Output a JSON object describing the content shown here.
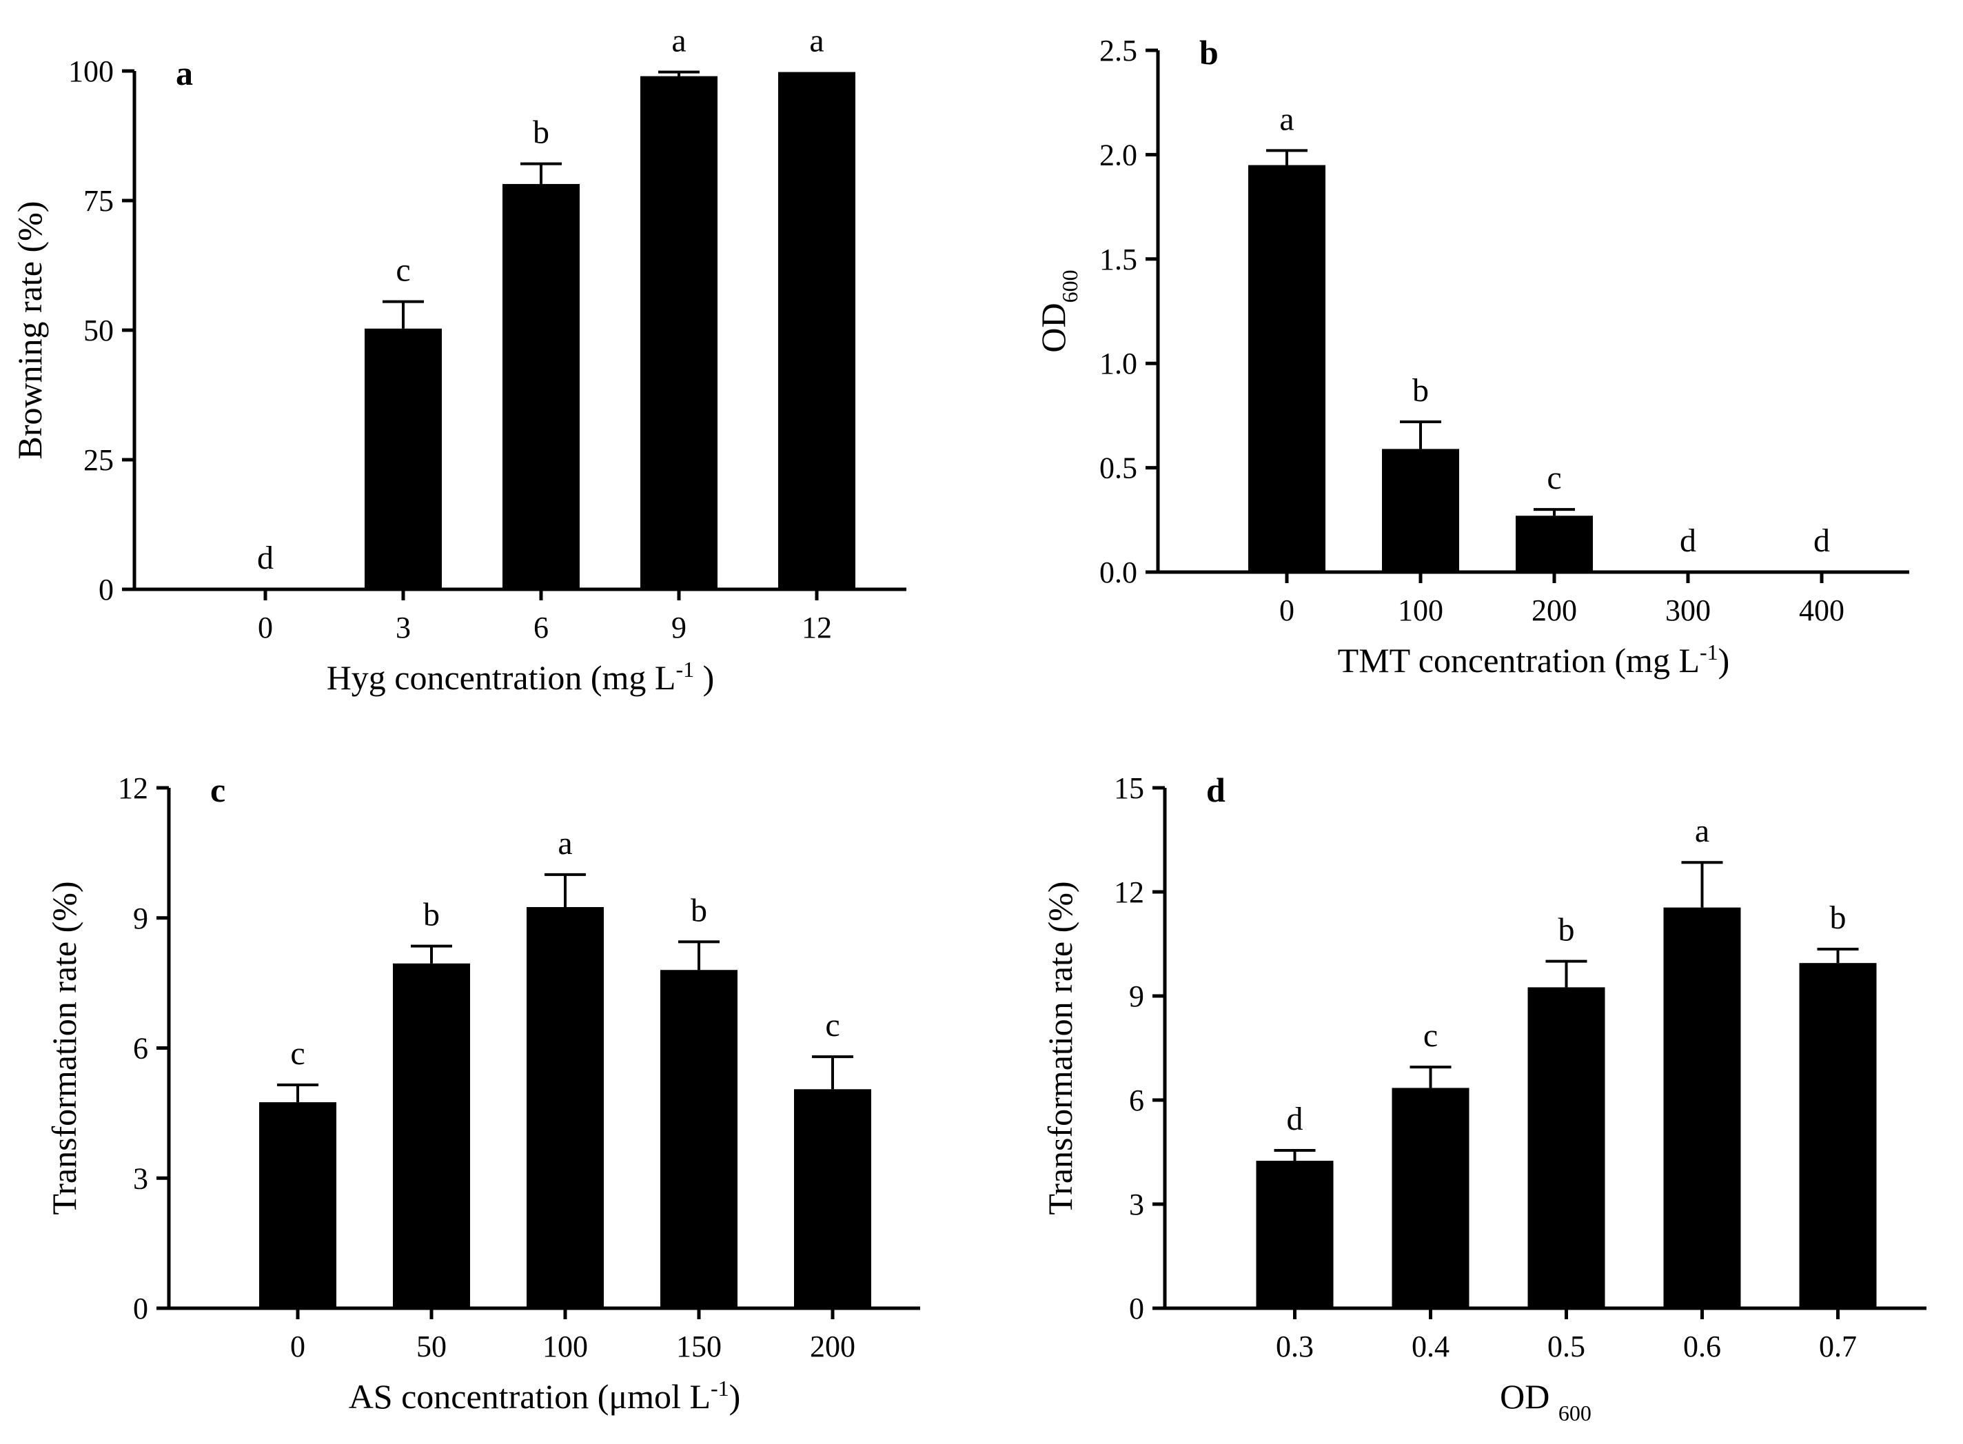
{
  "chart_data": [
    {
      "type": "bar",
      "panel_label": "a",
      "categories": [
        "0",
        "3",
        "6",
        "9",
        "12"
      ],
      "values": [
        0,
        50.3,
        78.2,
        99.0,
        99.8
      ],
      "errors": [
        0,
        5.2,
        3.9,
        0.8,
        0
      ],
      "letters": [
        "d",
        "c",
        "b",
        "a",
        "a"
      ],
      "xlabel": "Hyg concentration (mg L",
      "xlabel_sup": "-1",
      "xlabel_tail": " )",
      "ylabel": "Browning rate (%)",
      "ylim": [
        0,
        100
      ],
      "yticks": [
        "0",
        "25",
        "50",
        "75",
        "100"
      ]
    },
    {
      "type": "bar",
      "panel_label": "b",
      "categories": [
        "0",
        "100",
        "200",
        "300",
        "400"
      ],
      "values": [
        1.95,
        0.59,
        0.27,
        0,
        0
      ],
      "errors": [
        0.07,
        0.13,
        0.03,
        0,
        0
      ],
      "letters": [
        "a",
        "b",
        "c",
        "d",
        "d"
      ],
      "xlabel": "TMT concentration (mg L",
      "xlabel_sup": "-1",
      "xlabel_tail": ")",
      "ylabel": "OD",
      "ylabel_sub": "600",
      "ylim": [
        0,
        2.5
      ],
      "yticks": [
        "0.0",
        "0.5",
        "1.0",
        "1.5",
        "2.0",
        "2.5"
      ]
    },
    {
      "type": "bar",
      "panel_label": "c",
      "categories": [
        "0",
        "50",
        "100",
        "150",
        "200"
      ],
      "values": [
        4.75,
        7.95,
        9.25,
        7.8,
        5.05
      ],
      "errors": [
        0.4,
        0.4,
        0.75,
        0.65,
        0.75
      ],
      "letters": [
        "c",
        "b",
        "a",
        "b",
        "c"
      ],
      "xlabel": "AS concentration (μmol L",
      "xlabel_sup": "-1",
      "xlabel_tail": ")",
      "ylabel": "Transformation rate (%)",
      "ylim": [
        0,
        12
      ],
      "yticks": [
        "0",
        "3",
        "6",
        "9",
        "12"
      ]
    },
    {
      "type": "bar",
      "panel_label": "d",
      "categories": [
        "0.3",
        "0.4",
        "0.5",
        "0.6",
        "0.7"
      ],
      "values": [
        4.25,
        6.35,
        9.25,
        11.55,
        9.95
      ],
      "errors": [
        0.3,
        0.6,
        0.75,
        1.3,
        0.4
      ],
      "letters": [
        "d",
        "c",
        "b",
        "a",
        "b"
      ],
      "xlabel": "OD ",
      "xlabel_sub": "600",
      "ylabel": "Transformation rate (%)",
      "ylim": [
        0,
        15
      ],
      "yticks": [
        "0",
        "3",
        "6",
        "9",
        "12",
        "15"
      ]
    }
  ]
}
